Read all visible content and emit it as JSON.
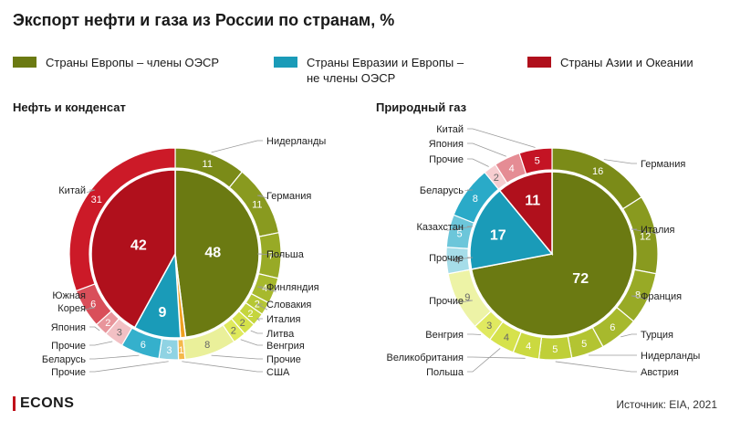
{
  "title": "Экспорт нефти и газа из России по странам, %",
  "legend": [
    {
      "label": "Страны Европы – члены ОЭСР",
      "color": "#6b7a12"
    },
    {
      "label": "Страны Евразии и Европы –\nне члены ОЭСР",
      "color": "#1a9bb8"
    },
    {
      "label": "Страны Азии и Океании",
      "color": "#b0101c"
    }
  ],
  "chart_data": [
    {
      "type": "pie",
      "title": "Нефть и конденсат",
      "groups": [
        {
          "name": "Страны Европы – члены ОЭСР",
          "value": 48,
          "color": "#6b7a12"
        },
        {
          "name": "США",
          "value": 1,
          "color": "#f0a020"
        },
        {
          "name": "Страны Евразии и Европы – не члены ОЭСР",
          "value": 9,
          "color": "#1a9bb8"
        },
        {
          "name": "Страны Азии и Океании",
          "value": 42,
          "color": "#b0101c"
        }
      ],
      "countries": [
        {
          "name": "Нидерланды",
          "value": 11,
          "color": "#7b8b18"
        },
        {
          "name": "Германия",
          "value": 11,
          "color": "#899a1f"
        },
        {
          "name": "Польша",
          "value": 7,
          "color": "#98aa26"
        },
        {
          "name": "Финляндия",
          "value": 4,
          "color": "#a7b92d"
        },
        {
          "name": "Словакия",
          "value": 2,
          "color": "#b6c734"
        },
        {
          "name": "Италия",
          "value": 2,
          "color": "#c5d53d"
        },
        {
          "name": "Литва",
          "value": 2,
          "color": "#d4e14a"
        },
        {
          "name": "Венгрия",
          "value": 2,
          "color": "#dfe95c"
        },
        {
          "name": "Прочие",
          "value": 8,
          "color": "#eaf09a"
        },
        {
          "name": "США",
          "value": 1,
          "color": "#f5b84a"
        },
        {
          "name": "Прочие",
          "value": 3,
          "color": "#8fd3e3"
        },
        {
          "name": "Беларусь",
          "value": 6,
          "color": "#35b0cc"
        },
        {
          "name": "Прочие",
          "value": 3,
          "color": "#f2c0c4"
        },
        {
          "name": "Япония",
          "value": 2,
          "color": "#e8959b"
        },
        {
          "name": "Южная\nКорея",
          "value": 6,
          "color": "#d94f5a"
        },
        {
          "name": "Китай",
          "value": 31,
          "color": "#cc1a28"
        }
      ]
    },
    {
      "type": "pie",
      "title": "Природный газ",
      "groups": [
        {
          "name": "Страны Европы – члены ОЭСР",
          "value": 72,
          "color": "#6b7a12"
        },
        {
          "name": "Страны Евразии и Европы – не члены ОЭСР",
          "value": 17,
          "color": "#1a9bb8"
        },
        {
          "name": "Страны Азии и Океании",
          "value": 11,
          "color": "#b0101c"
        }
      ],
      "countries": [
        {
          "name": "Германия",
          "value": 16,
          "color": "#7b8b18"
        },
        {
          "name": "Италия",
          "value": 12,
          "color": "#899a1f"
        },
        {
          "name": "Франция",
          "value": 8,
          "color": "#98aa26"
        },
        {
          "name": "Турция",
          "value": 6,
          "color": "#a7b92d"
        },
        {
          "name": "Нидерланды",
          "value": 5,
          "color": "#b3c432"
        },
        {
          "name": "Австрия",
          "value": 5,
          "color": "#bfcf38"
        },
        {
          "name": "Великобритания",
          "value": 4,
          "color": "#cbd940"
        },
        {
          "name": "Польша",
          "value": 4,
          "color": "#d6e24c"
        },
        {
          "name": "Венгрия",
          "value": 3,
          "color": "#e0e960"
        },
        {
          "name": "Прочие",
          "value": 9,
          "color": "#edf3a6"
        },
        {
          "name": "Прочие",
          "value": 4,
          "color": "#a6dde9"
        },
        {
          "name": "Казахстан",
          "value": 5,
          "color": "#6cc6da"
        },
        {
          "name": "Беларусь",
          "value": 8,
          "color": "#2aaac8"
        },
        {
          "name": "Прочие",
          "value": 2,
          "color": "#f6cdd0"
        },
        {
          "name": "Япония",
          "value": 4,
          "color": "#e58c94"
        },
        {
          "name": "Китай",
          "value": 5,
          "color": "#c41424"
        }
      ]
    }
  ],
  "footer": {
    "brand": "ECONS",
    "source": "Источник: EIA, 2021"
  }
}
